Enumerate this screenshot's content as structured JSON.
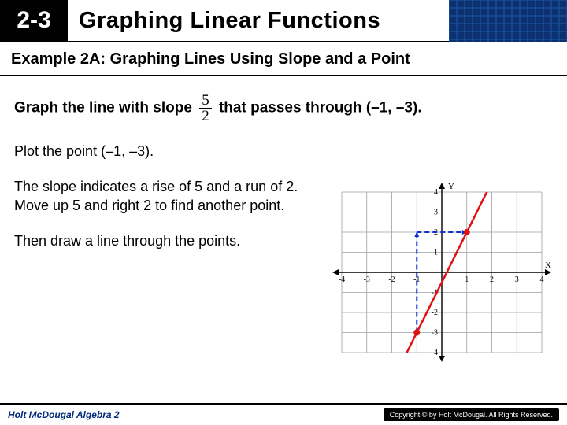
{
  "header": {
    "lesson_number": "2-3",
    "title": "Graphing Linear Functions",
    "grid_color": "#1a5aa8",
    "grid_bg": "#0d3170"
  },
  "example": {
    "label": "Example 2A: Graphing Lines Using Slope and a Point"
  },
  "problem": {
    "text_before": "Graph the line with slope",
    "slope_num": "5",
    "slope_den": "2",
    "text_after": "that passes through (–1, –3)."
  },
  "steps": {
    "s1": "Plot the point (–1, –3).",
    "s2": "The slope indicates a rise of 5 and a run of 2. Move up 5 and right 2 to find another point.",
    "s3": "Then draw a line through the points."
  },
  "graph": {
    "xlim": [
      -4,
      4
    ],
    "ylim": [
      -4,
      4
    ],
    "xtick_step": 1,
    "ytick_step": 1,
    "xticks_label": [
      -4,
      -3,
      -2,
      -1,
      1,
      2,
      3,
      4
    ],
    "yticks_label": [
      -4,
      -3,
      -2,
      -1,
      1,
      2,
      3,
      4
    ],
    "x_axis_label": "X",
    "y_axis_label": "Y",
    "grid_color": "#9aa0a6",
    "axis_color": "#000000",
    "background_color": "#ffffff",
    "tick_fontsize": 10,
    "line": {
      "color": "#e01010",
      "width": 2.5,
      "p1": [
        -2.2,
        -6
      ],
      "p2": [
        2.4,
        5.5
      ]
    },
    "points": [
      {
        "x": -1,
        "y": -3,
        "color": "#e01010",
        "r": 4
      },
      {
        "x": 1,
        "y": 2,
        "color": "#e01010",
        "r": 4
      }
    ],
    "rise_run": {
      "from": [
        -1,
        -3
      ],
      "rise_to": [
        -1,
        2
      ],
      "run_to": [
        1,
        2
      ],
      "color": "#1030d0",
      "dash": "6,4",
      "width": 2
    }
  },
  "footer": {
    "left": "Holt McDougal Algebra 2",
    "right": "Copyright © by Holt McDougal. All Rights Reserved."
  }
}
